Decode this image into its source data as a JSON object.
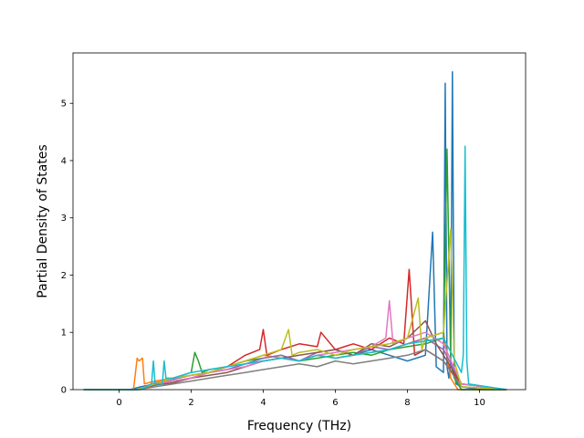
{
  "chart_data": {
    "type": "line",
    "title": "",
    "xlabel": "Frequency (THz)",
    "ylabel": "Partial Density of States",
    "xlim": [
      -1.28,
      11.28
    ],
    "ylim": [
      0,
      5.88
    ],
    "xticks": [
      0,
      2,
      4,
      6,
      8,
      10
    ],
    "yticks": [
      0,
      1,
      2,
      3,
      4,
      5
    ],
    "grid": false,
    "legend": "none",
    "palette": [
      "#1f77b4",
      "#ff7f0e",
      "#2ca02c",
      "#d62728",
      "#9467bd",
      "#8c564b",
      "#e377c2",
      "#7f7f7f",
      "#bcbd22",
      "#17becf"
    ],
    "series": [
      {
        "color": "#1f77b4",
        "x": [
          -0.98,
          0.3,
          0.6,
          1.0,
          1.5,
          2.0,
          2.5,
          3.0,
          3.5,
          4.0,
          4.5,
          5.0,
          5.5,
          6.0,
          6.5,
          7.0,
          7.5,
          8.0,
          8.5,
          8.7,
          8.8,
          9.0,
          9.05,
          9.1,
          9.15,
          9.2,
          9.25,
          9.3,
          9.35,
          9.5,
          10.0,
          10.75
        ],
        "y": [
          0,
          0,
          0.05,
          0.1,
          0.15,
          0.2,
          0.3,
          0.35,
          0.45,
          0.5,
          0.55,
          0.5,
          0.6,
          0.55,
          0.6,
          0.7,
          0.6,
          0.5,
          0.6,
          2.75,
          0.4,
          0.3,
          5.35,
          0.4,
          0.2,
          0.5,
          5.55,
          0.3,
          0.1,
          0.05,
          0,
          0
        ]
      },
      {
        "color": "#ff7f0e",
        "x": [
          -0.98,
          0.4,
          0.5,
          0.55,
          0.65,
          0.7,
          1.0,
          1.5,
          2.0,
          2.5,
          3.0,
          3.5,
          4.0,
          4.5,
          5.0,
          5.5,
          6.0,
          6.5,
          7.0,
          7.5,
          8.0,
          8.5,
          9.0,
          9.2,
          9.4,
          10.75
        ],
        "y": [
          0,
          0,
          0.55,
          0.5,
          0.55,
          0.1,
          0.15,
          0.2,
          0.25,
          0.3,
          0.4,
          0.5,
          0.6,
          0.55,
          0.5,
          0.6,
          0.55,
          0.6,
          0.65,
          0.7,
          0.8,
          0.9,
          1.0,
          0.2,
          0,
          0
        ]
      },
      {
        "color": "#2ca02c",
        "x": [
          -0.98,
          0.5,
          1.0,
          1.5,
          2.0,
          2.1,
          2.2,
          2.3,
          2.5,
          3.0,
          3.5,
          4.0,
          4.5,
          5.0,
          5.5,
          6.0,
          6.5,
          7.0,
          7.5,
          8.0,
          8.5,
          9.0,
          9.1,
          9.2,
          9.3,
          9.5,
          10.75
        ],
        "y": [
          0,
          0,
          0.1,
          0.2,
          0.3,
          0.65,
          0.5,
          0.3,
          0.35,
          0.4,
          0.5,
          0.55,
          0.6,
          0.5,
          0.55,
          0.6,
          0.65,
          0.6,
          0.7,
          0.75,
          0.8,
          0.9,
          4.2,
          0.5,
          0.2,
          0,
          0
        ]
      },
      {
        "color": "#d62728",
        "x": [
          -0.98,
          0.5,
          1.0,
          1.5,
          2.0,
          2.5,
          3.0,
          3.5,
          3.9,
          4.0,
          4.1,
          4.5,
          5.0,
          5.5,
          5.6,
          6.0,
          6.5,
          7.0,
          7.5,
          7.9,
          8.05,
          8.2,
          8.5,
          9.0,
          9.5,
          10.75
        ],
        "y": [
          0,
          0,
          0.1,
          0.15,
          0.2,
          0.3,
          0.4,
          0.6,
          0.7,
          1.05,
          0.6,
          0.7,
          0.8,
          0.75,
          1.0,
          0.7,
          0.8,
          0.7,
          0.9,
          0.8,
          2.1,
          0.6,
          0.7,
          0.5,
          0.1,
          0
        ]
      },
      {
        "color": "#9467bd",
        "x": [
          -0.98,
          0.5,
          1.0,
          1.5,
          2.0,
          2.5,
          3.0,
          3.5,
          4.0,
          4.5,
          5.0,
          5.5,
          6.0,
          6.5,
          7.0,
          7.5,
          8.0,
          8.5,
          9.0,
          9.5,
          10.75
        ],
        "y": [
          0,
          0,
          0.12,
          0.18,
          0.25,
          0.3,
          0.35,
          0.45,
          0.55,
          0.6,
          0.5,
          0.65,
          0.7,
          0.6,
          0.75,
          0.7,
          0.8,
          0.9,
          0.7,
          0.1,
          0
        ]
      },
      {
        "color": "#8c564b",
        "x": [
          -0.98,
          0.5,
          1.0,
          1.5,
          2.0,
          2.5,
          3.0,
          3.5,
          4.0,
          4.5,
          5.0,
          5.5,
          6.0,
          6.5,
          7.0,
          7.5,
          8.0,
          8.5,
          8.8,
          9.0,
          9.5,
          10.75
        ],
        "y": [
          0,
          0,
          0.08,
          0.12,
          0.2,
          0.25,
          0.3,
          0.4,
          0.5,
          0.55,
          0.6,
          0.65,
          0.7,
          0.6,
          0.8,
          0.75,
          0.9,
          1.2,
          0.8,
          0.6,
          0.1,
          0
        ]
      },
      {
        "color": "#e377c2",
        "x": [
          -0.98,
          0.5,
          1.0,
          1.5,
          2.0,
          2.5,
          3.0,
          3.5,
          4.0,
          4.5,
          5.0,
          5.5,
          6.0,
          6.5,
          7.0,
          7.4,
          7.5,
          7.6,
          8.0,
          8.5,
          9.0,
          9.5,
          10.75
        ],
        "y": [
          0,
          0,
          0.1,
          0.15,
          0.2,
          0.3,
          0.35,
          0.4,
          0.5,
          0.55,
          0.5,
          0.6,
          0.65,
          0.7,
          0.75,
          0.9,
          1.55,
          0.8,
          0.9,
          1.0,
          0.8,
          0.1,
          0
        ]
      },
      {
        "color": "#7f7f7f",
        "x": [
          -0.98,
          0.5,
          1.0,
          1.5,
          2.0,
          2.5,
          3.0,
          3.5,
          4.0,
          4.5,
          5.0,
          5.5,
          6.0,
          6.5,
          7.0,
          7.5,
          8.0,
          8.5,
          9.0,
          9.5,
          10.75
        ],
        "y": [
          0,
          0,
          0.05,
          0.1,
          0.15,
          0.2,
          0.25,
          0.3,
          0.35,
          0.4,
          0.45,
          0.4,
          0.5,
          0.45,
          0.5,
          0.55,
          0.6,
          0.7,
          0.5,
          0.05,
          0
        ]
      },
      {
        "color": "#bcbd22",
        "x": [
          -0.98,
          0.5,
          1.0,
          1.5,
          2.0,
          2.5,
          3.0,
          3.5,
          4.0,
          4.5,
          4.7,
          4.8,
          5.0,
          5.5,
          6.0,
          6.5,
          7.0,
          7.5,
          8.0,
          8.3,
          8.4,
          8.5,
          9.0,
          9.2,
          9.3,
          9.5,
          10.75
        ],
        "y": [
          0,
          0,
          0.1,
          0.2,
          0.25,
          0.3,
          0.4,
          0.5,
          0.6,
          0.7,
          1.05,
          0.6,
          0.65,
          0.7,
          0.6,
          0.7,
          0.75,
          0.8,
          0.9,
          1.6,
          0.7,
          0.9,
          1.0,
          2.8,
          0.5,
          0.05,
          0
        ]
      },
      {
        "color": "#17becf",
        "x": [
          -0.98,
          0.6,
          0.9,
          0.95,
          1.0,
          1.2,
          1.25,
          1.3,
          1.5,
          2.0,
          2.5,
          3.0,
          3.5,
          4.0,
          4.5,
          5.0,
          5.5,
          6.0,
          6.5,
          7.0,
          7.5,
          8.0,
          8.5,
          9.0,
          9.5,
          9.55,
          9.6,
          9.65,
          9.7,
          10.75
        ],
        "y": [
          0,
          0,
          0.1,
          0.5,
          0.1,
          0.1,
          0.5,
          0.2,
          0.2,
          0.3,
          0.35,
          0.4,
          0.45,
          0.5,
          0.55,
          0.5,
          0.6,
          0.55,
          0.6,
          0.65,
          0.7,
          0.8,
          0.85,
          0.9,
          0.3,
          0.6,
          4.25,
          0.5,
          0.1,
          0
        ]
      }
    ]
  }
}
